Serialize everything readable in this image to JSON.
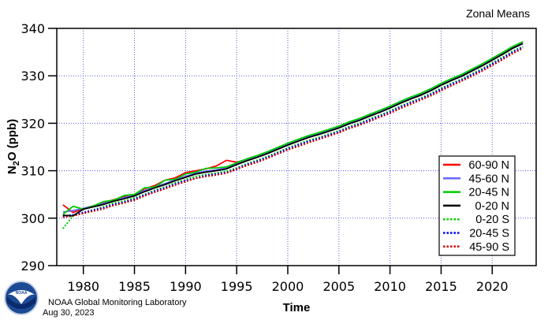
{
  "chart_data": {
    "type": "line",
    "title": "Zonal Means",
    "xlabel": "Time",
    "ylabel_main": "N",
    "ylabel_sub": "2",
    "ylabel_rest": "O (ppb)",
    "xlim": [
      1977.4,
      2024.3
    ],
    "ylim": [
      290,
      340
    ],
    "xticks": [
      1980,
      1985,
      1990,
      1995,
      2000,
      2005,
      2010,
      2015,
      2020
    ],
    "yticks": [
      290,
      300,
      310,
      320,
      330,
      340
    ],
    "grid": true,
    "legend_position": "bottom-right",
    "x": [
      1978,
      1979,
      1980,
      1981,
      1982,
      1983,
      1984,
      1985,
      1986,
      1987,
      1988,
      1989,
      1990,
      1991,
      1992,
      1993,
      1994,
      1995,
      1996,
      1997,
      1998,
      1999,
      2000,
      2001,
      2002,
      2003,
      2004,
      2005,
      2006,
      2007,
      2008,
      2009,
      2010,
      2011,
      2012,
      2013,
      2014,
      2015,
      2016,
      2017,
      2018,
      2019,
      2020,
      2021,
      2022,
      2023
    ],
    "series": [
      {
        "name": "60-90 N",
        "color": "#ff0000",
        "style": "solid",
        "values": [
          302.8,
          301.2,
          302.0,
          302.5,
          303.3,
          303.9,
          304.6,
          305.0,
          306.2,
          306.9,
          308.0,
          308.5,
          309.6,
          310.0,
          310.4,
          311.0,
          312.2,
          311.8,
          312.4,
          313.1,
          313.9,
          314.8,
          315.7,
          316.5,
          317.3,
          317.9,
          318.6,
          319.3,
          320.2,
          320.9,
          321.8,
          322.6,
          323.5,
          324.5,
          325.4,
          326.2,
          327.2,
          328.3,
          329.3,
          330.2,
          331.3,
          332.4,
          333.6,
          334.8,
          336.1,
          337.1
        ]
      },
      {
        "name": "45-60 N",
        "color": "#6666ff",
        "style": "solid",
        "values": [
          301.3,
          301.6,
          302.1,
          302.6,
          303.1,
          303.8,
          304.3,
          304.9,
          305.8,
          306.6,
          307.3,
          308.1,
          308.8,
          309.5,
          309.9,
          310.2,
          310.6,
          311.5,
          312.3,
          313.0,
          313.8,
          314.7,
          315.6,
          316.4,
          317.2,
          317.8,
          318.5,
          319.2,
          320.1,
          320.8,
          321.7,
          322.5,
          323.4,
          324.4,
          325.3,
          326.1,
          327.1,
          328.2,
          329.2,
          330.1,
          331.2,
          332.3,
          333.5,
          334.7,
          336.0,
          337.0
        ]
      },
      {
        "name": "20-45 N",
        "color": "#00cc00",
        "style": "solid",
        "values": [
          300.8,
          302.5,
          301.9,
          302.6,
          303.5,
          303.8,
          304.8,
          305.0,
          306.4,
          306.6,
          308.0,
          308.2,
          309.3,
          309.7,
          310.5,
          310.6,
          310.8,
          311.7,
          312.5,
          313.2,
          314.0,
          314.9,
          315.8,
          316.6,
          317.4,
          318.0,
          318.7,
          319.4,
          320.3,
          321.0,
          321.9,
          322.7,
          323.6,
          324.6,
          325.5,
          326.3,
          327.3,
          328.4,
          329.4,
          330.3,
          331.4,
          332.5,
          333.7,
          334.9,
          336.2,
          337.2
        ]
      },
      {
        "name": "0-20 N",
        "color": "#000000",
        "style": "solid",
        "values": [
          300.6,
          300.5,
          301.9,
          302.4,
          302.9,
          303.6,
          304.1,
          304.7,
          305.6,
          306.4,
          307.1,
          307.9,
          308.6,
          309.3,
          309.7,
          310.0,
          310.4,
          311.3,
          312.1,
          312.8,
          313.6,
          314.5,
          315.4,
          316.2,
          317.0,
          317.6,
          318.3,
          319.0,
          319.9,
          320.6,
          321.5,
          322.3,
          323.2,
          324.2,
          325.1,
          325.9,
          326.9,
          328.0,
          329.0,
          329.9,
          331.0,
          332.1,
          333.3,
          334.5,
          335.8,
          336.8
        ]
      },
      {
        "name": "0-20 S",
        "color": "#00cc00",
        "style": "dotted",
        "values": [
          297.8,
          300.5,
          301.2,
          301.8,
          302.4,
          303.2,
          303.6,
          304.3,
          305.0,
          305.9,
          306.6,
          307.5,
          308.1,
          308.8,
          309.2,
          309.5,
          309.9,
          310.6,
          311.5,
          312.2,
          313.0,
          313.9,
          314.8,
          315.6,
          316.4,
          317.0,
          317.7,
          318.4,
          319.3,
          320.0,
          320.9,
          321.7,
          322.6,
          323.6,
          324.5,
          325.3,
          326.3,
          327.4,
          328.4,
          329.3,
          330.4,
          331.5,
          332.7,
          333.9,
          335.2,
          336.2
        ]
      },
      {
        "name": "20-45 S",
        "color": "#0000ff",
        "style": "dotted",
        "values": [
          300.4,
          300.7,
          301.2,
          301.7,
          302.2,
          302.9,
          303.4,
          304.0,
          304.9,
          305.7,
          306.4,
          307.2,
          307.9,
          308.4,
          309.0,
          309.3,
          309.6,
          310.4,
          311.3,
          312.0,
          312.8,
          313.7,
          314.6,
          315.4,
          316.2,
          316.8,
          317.5,
          318.2,
          319.1,
          319.8,
          320.7,
          321.5,
          322.4,
          323.4,
          324.3,
          325.1,
          326.1,
          327.2,
          328.2,
          329.1,
          330.2,
          331.3,
          332.5,
          333.7,
          335.0,
          336.0
        ]
      },
      {
        "name": "45-90 S",
        "color": "#cc0000",
        "style": "dotted",
        "values": [
          300.2,
          300.5,
          301.0,
          301.5,
          302.0,
          302.7,
          303.2,
          303.8,
          304.7,
          305.5,
          306.2,
          307.0,
          307.7,
          308.4,
          308.8,
          309.1,
          309.5,
          310.3,
          311.1,
          311.8,
          312.6,
          313.5,
          314.4,
          315.1,
          315.9,
          316.6,
          317.3,
          318.0,
          318.9,
          319.6,
          320.4,
          321.3,
          322.1,
          323.1,
          324.0,
          324.9,
          325.8,
          326.9,
          327.9,
          328.9,
          329.9,
          331.0,
          332.2,
          333.4,
          334.7,
          335.8
        ]
      }
    ]
  },
  "footer": {
    "lab": "NOAA Global Monitoring Laboratory",
    "date": "Aug 30, 2023",
    "logo_text": "NOAA"
  }
}
